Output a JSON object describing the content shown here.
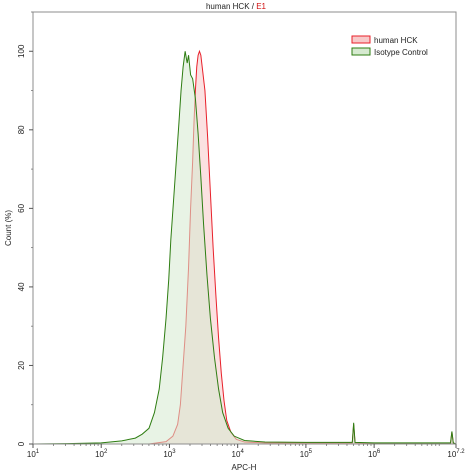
{
  "chart_data": {
    "type": "area",
    "title_parts": [
      {
        "text": "human HCK",
        "color": "#222222"
      },
      {
        "text": " / ",
        "color": "#222222"
      },
      {
        "text": "E1",
        "color": "#d01010"
      }
    ],
    "xlabel": "APC-H",
    "ylabel": "Count (%)",
    "x_scale": "log",
    "xlim_log10": [
      1,
      7.2
    ],
    "ylim": [
      0,
      110
    ],
    "x_ticks": [
      {
        "base": "10",
        "exp": "1",
        "log10": 1
      },
      {
        "base": "10",
        "exp": "2",
        "log10": 2
      },
      {
        "base": "10",
        "exp": "3",
        "log10": 3
      },
      {
        "base": "10",
        "exp": "4",
        "log10": 4
      },
      {
        "base": "10",
        "exp": "5",
        "log10": 5
      },
      {
        "base": "10",
        "exp": "6",
        "log10": 6
      },
      {
        "base": "10",
        "exp": "7.2",
        "log10": 7.2
      }
    ],
    "y_ticks": [
      "0",
      "20",
      "40",
      "60",
      "80",
      "100"
    ],
    "legend_position": "top-right",
    "series": [
      {
        "name": "human HCK",
        "stroke": "#e8202a",
        "fill": "#f7c9c9",
        "points_log10": [
          [
            1.0,
            0
          ],
          [
            2.7,
            0
          ],
          [
            2.95,
            0.6
          ],
          [
            3.05,
            2
          ],
          [
            3.12,
            5
          ],
          [
            3.16,
            10
          ],
          [
            3.2,
            20
          ],
          [
            3.24,
            30
          ],
          [
            3.28,
            45
          ],
          [
            3.31,
            60
          ],
          [
            3.34,
            72
          ],
          [
            3.36,
            82
          ],
          [
            3.38,
            90
          ],
          [
            3.4,
            96
          ],
          [
            3.42,
            99
          ],
          [
            3.44,
            100
          ],
          [
            3.46,
            99
          ],
          [
            3.48,
            96
          ],
          [
            3.52,
            90
          ],
          [
            3.56,
            78
          ],
          [
            3.6,
            64
          ],
          [
            3.64,
            50
          ],
          [
            3.68,
            38
          ],
          [
            3.72,
            27
          ],
          [
            3.76,
            18
          ],
          [
            3.8,
            11
          ],
          [
            3.84,
            6
          ],
          [
            3.9,
            3
          ],
          [
            3.98,
            1.2
          ],
          [
            4.1,
            0.5
          ],
          [
            4.4,
            0.3
          ],
          [
            5.0,
            0.3
          ],
          [
            5.6,
            0.3
          ],
          [
            5.68,
            0.3
          ],
          [
            5.7,
            5
          ],
          [
            5.72,
            0.3
          ],
          [
            6.0,
            0.2
          ],
          [
            7.12,
            0.2
          ],
          [
            7.14,
            3
          ],
          [
            7.16,
            0.2
          ],
          [
            7.2,
            0
          ]
        ]
      },
      {
        "name": "Isotype Control",
        "stroke": "#2e7d12",
        "fill": "#d6ead0",
        "points_log10": [
          [
            1.0,
            0
          ],
          [
            1.5,
            0.1
          ],
          [
            2.0,
            0.3
          ],
          [
            2.3,
            0.8
          ],
          [
            2.5,
            1.5
          ],
          [
            2.6,
            2.5
          ],
          [
            2.7,
            4
          ],
          [
            2.78,
            8
          ],
          [
            2.85,
            14
          ],
          [
            2.9,
            22
          ],
          [
            2.95,
            32
          ],
          [
            2.99,
            42
          ],
          [
            3.02,
            52
          ],
          [
            3.06,
            62
          ],
          [
            3.1,
            72
          ],
          [
            3.14,
            82
          ],
          [
            3.17,
            90
          ],
          [
            3.2,
            96
          ],
          [
            3.23,
            100
          ],
          [
            3.26,
            97
          ],
          [
            3.28,
            99
          ],
          [
            3.31,
            94
          ],
          [
            3.34,
            93
          ],
          [
            3.38,
            88
          ],
          [
            3.42,
            79
          ],
          [
            3.46,
            68
          ],
          [
            3.5,
            56
          ],
          [
            3.55,
            43
          ],
          [
            3.6,
            32
          ],
          [
            3.66,
            22
          ],
          [
            3.72,
            14
          ],
          [
            3.78,
            8
          ],
          [
            3.86,
            4
          ],
          [
            3.95,
            2
          ],
          [
            4.1,
            0.9
          ],
          [
            4.4,
            0.5
          ],
          [
            5.0,
            0.4
          ],
          [
            5.6,
            0.4
          ],
          [
            5.68,
            0.4
          ],
          [
            5.7,
            5.4
          ],
          [
            5.72,
            0.4
          ],
          [
            6.0,
            0.3
          ],
          [
            7.12,
            0.3
          ],
          [
            7.14,
            3.2
          ],
          [
            7.16,
            0.3
          ],
          [
            7.2,
            0
          ]
        ]
      }
    ]
  }
}
